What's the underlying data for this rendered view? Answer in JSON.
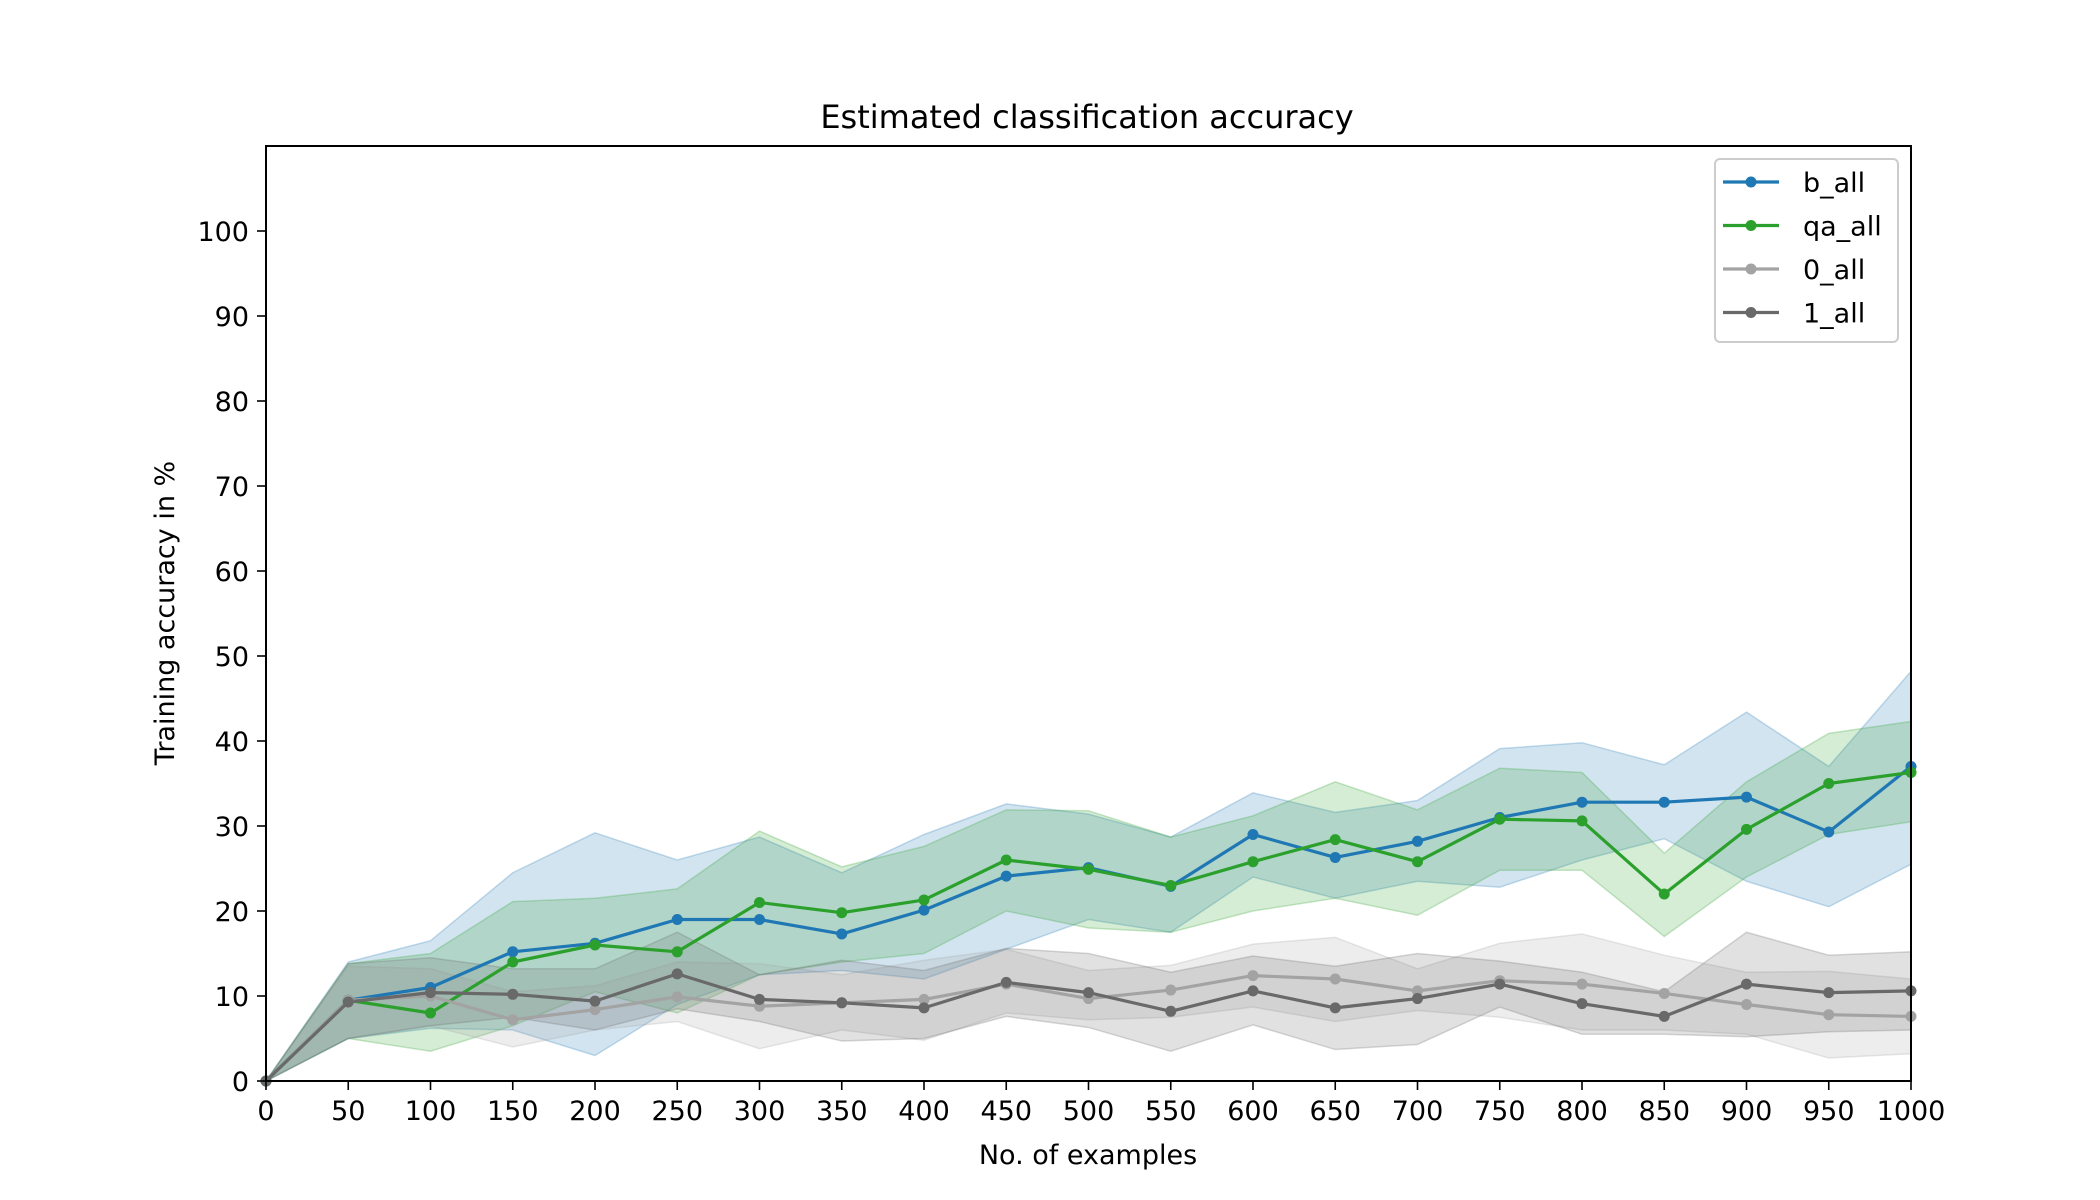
{
  "chart_data": {
    "type": "line",
    "title": "Estimated classification accuracy",
    "xlabel": "No. of examples",
    "ylabel": "Training accuracy in %",
    "xlim": [
      0,
      1000
    ],
    "ylim": [
      0,
      110
    ],
    "xticks": [
      0,
      50,
      100,
      150,
      200,
      250,
      300,
      350,
      400,
      450,
      500,
      550,
      600,
      650,
      700,
      750,
      800,
      850,
      900,
      950,
      1000
    ],
    "yticks": [
      0,
      10,
      20,
      30,
      40,
      50,
      60,
      70,
      80,
      90,
      100
    ],
    "grid": false,
    "legend_position": "top-right",
    "x": [
      0,
      50,
      100,
      150,
      200,
      250,
      300,
      350,
      400,
      450,
      500,
      550,
      600,
      650,
      700,
      750,
      800,
      850,
      900,
      950,
      1000
    ],
    "series": [
      {
        "name": "b_all",
        "color": "#1f77b4",
        "values": [
          0,
          9.5,
          11,
          15.2,
          16.2,
          19,
          19,
          17.3,
          20.1,
          24.1,
          25.1,
          22.9,
          29,
          26.3,
          28.2,
          31,
          32.8,
          32.8,
          33.4,
          29.3,
          37
        ],
        "lower": [
          0,
          5,
          6.2,
          6,
          3,
          9,
          12.5,
          13,
          12,
          15.5,
          19,
          17.5,
          24,
          21.5,
          23.5,
          22.8,
          26,
          28.5,
          23.5,
          20.5,
          25.5
        ],
        "upper": [
          0,
          14,
          16.5,
          24.5,
          29.2,
          26,
          28.7,
          24.5,
          29,
          32.6,
          31.4,
          28.7,
          33.9,
          31.6,
          33,
          39.1,
          39.8,
          37.2,
          43.4,
          37,
          48.2
        ]
      },
      {
        "name": "qa_all",
        "color": "#2ca02c",
        "values": [
          0,
          9.5,
          8,
          14,
          16,
          15.2,
          21,
          19.8,
          21.3,
          26,
          24.9,
          23,
          25.8,
          28.4,
          25.8,
          30.8,
          30.6,
          22,
          29.6,
          35,
          36.3
        ],
        "lower": [
          0,
          5,
          3.5,
          6.5,
          10.5,
          8,
          12.5,
          14,
          15,
          20,
          18,
          17.5,
          20,
          21.5,
          19.5,
          24.8,
          24.8,
          17,
          24,
          29,
          30.5
        ],
        "upper": [
          0,
          13.8,
          15,
          21.1,
          21.5,
          22.6,
          29.4,
          25.2,
          27.6,
          31.9,
          31.8,
          28.7,
          31.2,
          35.2,
          31.9,
          36.8,
          36.3,
          26.8,
          35.2,
          40.9,
          42.3
        ]
      },
      {
        "name": "0_all",
        "color": "#a3a3a3",
        "values": [
          0,
          9.5,
          10,
          7.2,
          8.4,
          9.9,
          8.8,
          9.2,
          9.6,
          11.4,
          9.7,
          10.7,
          12.4,
          12,
          10.6,
          11.8,
          11.4,
          10.3,
          9,
          7.8,
          7.6
        ],
        "lower": [
          0,
          5,
          6.5,
          4,
          6,
          7,
          3.8,
          6,
          4.8,
          8,
          7.2,
          7.5,
          8.7,
          7,
          8.3,
          7.5,
          6,
          6,
          5.5,
          2.7,
          3.2
        ],
        "upper": [
          0,
          13.5,
          13.2,
          10.5,
          11.2,
          14,
          13.8,
          12.5,
          14.2,
          15.5,
          13,
          13.6,
          16.1,
          16.9,
          13.2,
          16.2,
          17.3,
          14.8,
          12.8,
          12.9,
          12
        ]
      },
      {
        "name": "1_all",
        "color": "#696969",
        "values": [
          0,
          9.3,
          10.4,
          10.2,
          9.4,
          12.6,
          9.6,
          9.2,
          8.6,
          11.6,
          10.4,
          8.2,
          10.6,
          8.6,
          9.7,
          11.4,
          9.1,
          7.6,
          11.4,
          10.4,
          10.6
        ],
        "lower": [
          0,
          5,
          6.5,
          7.5,
          6,
          8.5,
          7,
          4.7,
          5,
          7.6,
          6.3,
          3.5,
          6.6,
          3.7,
          4.3,
          8.7,
          5.5,
          5.5,
          5.2,
          5.8,
          6
        ],
        "upper": [
          0,
          13.8,
          14.5,
          13.2,
          13.2,
          17.5,
          12.5,
          14.2,
          13,
          15.6,
          15,
          12.8,
          14.7,
          13.5,
          15,
          14.1,
          12.8,
          10.5,
          17.5,
          14.8,
          15.2
        ]
      }
    ]
  }
}
